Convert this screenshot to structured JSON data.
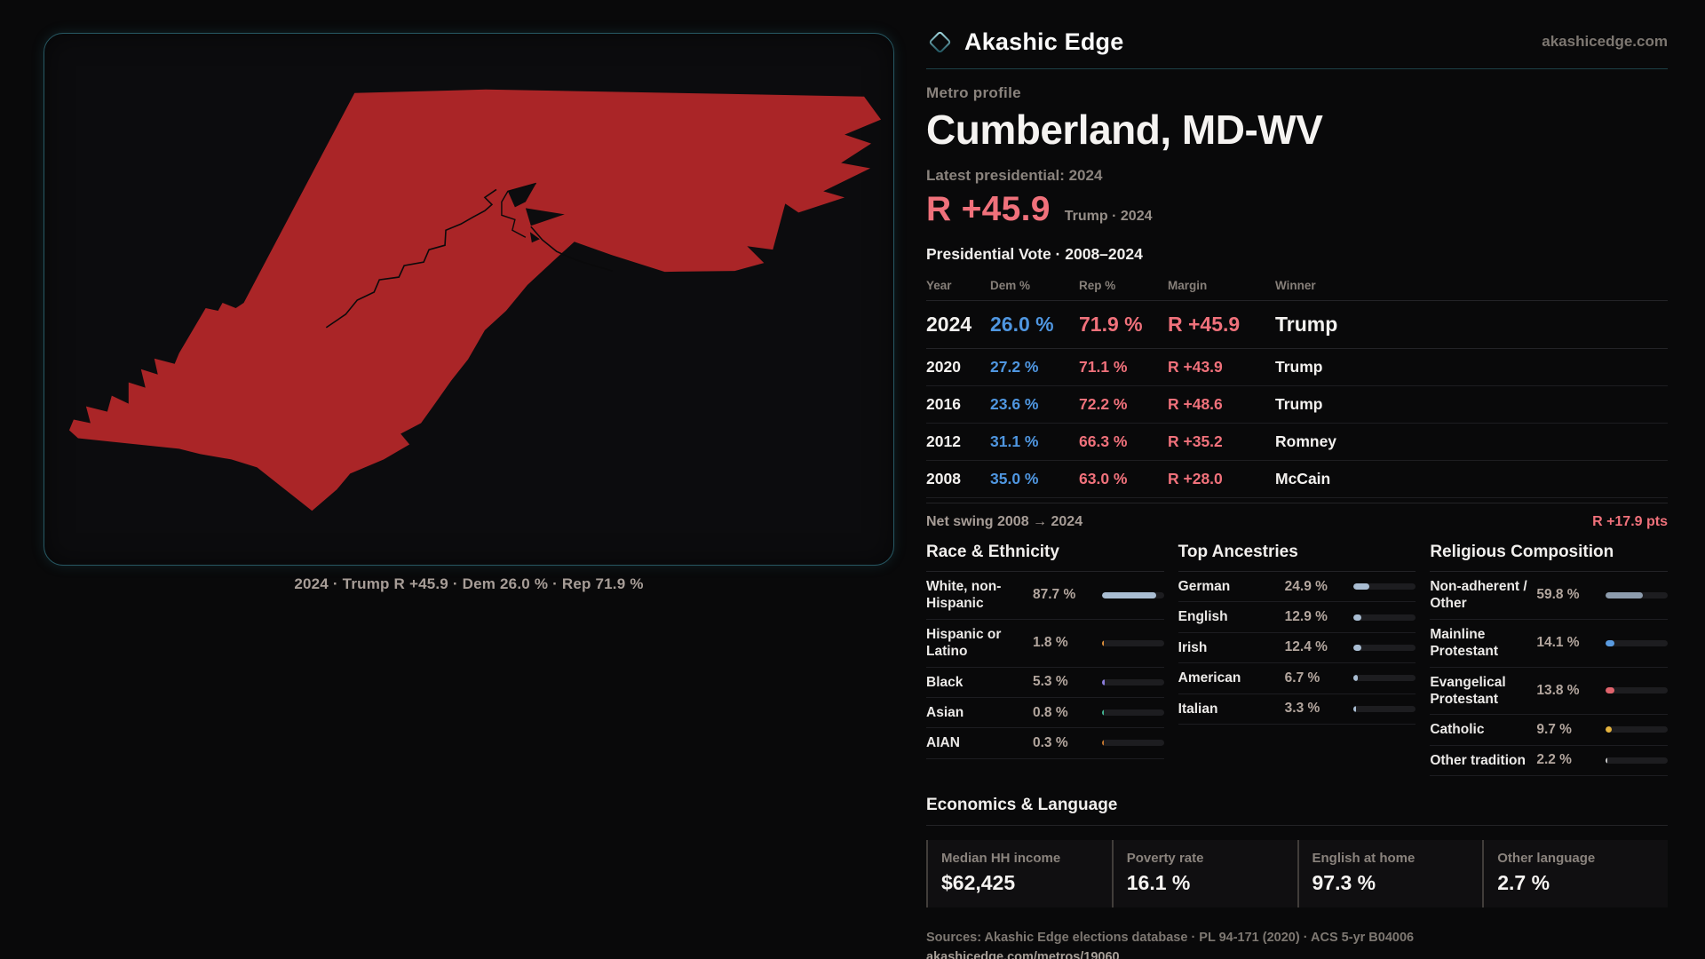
{
  "brand": {
    "name": "Akashic Edge",
    "domain": "akashicedge.com",
    "logo_icon": "diamond-outline"
  },
  "colors": {
    "accent_teal": "#2b6a74",
    "map_red": "#aa2527",
    "dem_blue": "#4f96e0",
    "rep_salmon": "#f0717b",
    "panel_border": "#275863"
  },
  "map": {
    "caption": "2024 · Trump R +45.9 · Dem 26.0 % · Rep 71.9 %"
  },
  "profile": {
    "kicker": "Metro profile",
    "title": "Cumberland, MD-WV",
    "latest_label": "Latest presidential: 2024",
    "margin_value": "R +45.9",
    "margin_sub": "Trump · 2024"
  },
  "table": {
    "title": "Presidential Vote · 2008–2024",
    "headers": [
      "Year",
      "Dem %",
      "Rep %",
      "Margin",
      "Winner"
    ],
    "rows": [
      {
        "year": "2024",
        "dem": "26.0 %",
        "rep": "71.9 %",
        "margin": "R +45.9",
        "winner": "Trump"
      },
      {
        "year": "2020",
        "dem": "27.2 %",
        "rep": "71.1 %",
        "margin": "R +43.9",
        "winner": "Trump"
      },
      {
        "year": "2016",
        "dem": "23.6 %",
        "rep": "72.2 %",
        "margin": "R +48.6",
        "winner": "Trump"
      },
      {
        "year": "2012",
        "dem": "31.1 %",
        "rep": "66.3 %",
        "margin": "R +35.2",
        "winner": "Romney"
      },
      {
        "year": "2008",
        "dem": "35.0 %",
        "rep": "63.0 %",
        "margin": "R +28.0",
        "winner": "McCain"
      }
    ],
    "net_swing_label": "Net swing 2008 → 2024",
    "net_swing_value": "R +17.9 pts"
  },
  "sections": {
    "race": {
      "title": "Race & Ethnicity",
      "items": [
        {
          "label": "White, non-Hispanic",
          "value": "87.7 %",
          "pct": 87.7,
          "color": "#a9bdd2"
        },
        {
          "label": "Hispanic or Latino",
          "value": "1.8 %",
          "pct": 1.8,
          "color": "#e0903a"
        },
        {
          "label": "Black",
          "value": "5.3 %",
          "pct": 5.3,
          "color": "#8a7cdb"
        },
        {
          "label": "Asian",
          "value": "0.8 %",
          "pct": 0.8,
          "color": "#43b894"
        },
        {
          "label": "AIAN",
          "value": "0.3 %",
          "pct": 0.3,
          "color": "#c7782e"
        }
      ]
    },
    "ancestry": {
      "title": "Top Ancestries",
      "items": [
        {
          "label": "German",
          "value": "24.9 %",
          "pct": 24.9,
          "color": "#a9bdd2"
        },
        {
          "label": "English",
          "value": "12.9 %",
          "pct": 12.9,
          "color": "#a9bdd2"
        },
        {
          "label": "Irish",
          "value": "12.4 %",
          "pct": 12.4,
          "color": "#a9bdd2"
        },
        {
          "label": "American",
          "value": "6.7 %",
          "pct": 6.7,
          "color": "#a9bdd2"
        },
        {
          "label": "Italian",
          "value": "3.3 %",
          "pct": 3.3,
          "color": "#a9bdd2"
        }
      ]
    },
    "religion": {
      "title": "Religious Composition",
      "items": [
        {
          "label": "Non-adherent / Other",
          "value": "59.8 %",
          "pct": 59.8,
          "color": "#8d9cad"
        },
        {
          "label": "Mainline Protestant",
          "value": "14.1 %",
          "pct": 14.1,
          "color": "#5a9be0"
        },
        {
          "label": "Evangelical Protestant",
          "value": "13.8 %",
          "pct": 13.8,
          "color": "#e0636c"
        },
        {
          "label": "Catholic",
          "value": "9.7 %",
          "pct": 9.7,
          "color": "#e5b33e"
        },
        {
          "label": "Other tradition",
          "value": "2.2 %",
          "pct": 2.2,
          "color": "#c9c9c9"
        }
      ]
    }
  },
  "economics": {
    "title": "Economics & Language",
    "stats": [
      {
        "label": "Median HH income",
        "value": "$62,425"
      },
      {
        "label": "Poverty rate",
        "value": "16.1 %"
      },
      {
        "label": "English at home",
        "value": "97.3 %"
      },
      {
        "label": "Other language",
        "value": "2.7 %"
      }
    ]
  },
  "footer": {
    "sources": "Sources: Akashic Edge elections database · PL 94-171 (2020) · ACS 5-yr B04006",
    "permalink": "akashicedge.com/metros/19060"
  }
}
